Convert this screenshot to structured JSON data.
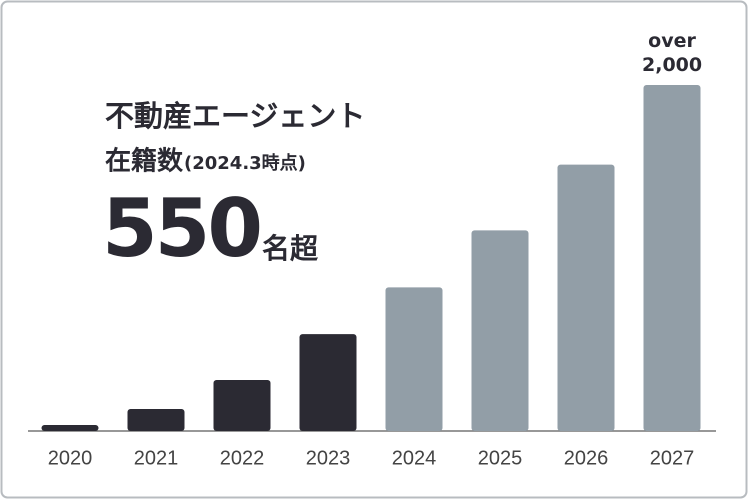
{
  "chart_data": {
    "type": "bar",
    "headline": {
      "line1": "不動産エージェント",
      "line2": "在籍数",
      "note": "(2024.3時点)",
      "count": "550",
      "count_unit": "名超"
    },
    "categories": [
      "2020",
      "2021",
      "2022",
      "2023",
      "2024",
      "2025",
      "2026",
      "2027"
    ],
    "values": [
      35,
      127,
      295,
      560,
      830,
      1160,
      1540,
      2000
    ],
    "value_labels": [
      null,
      null,
      null,
      null,
      null,
      null,
      null,
      "over 2,000"
    ],
    "colors": [
      "#2b2a33",
      "#2b2a33",
      "#2b2a33",
      "#2b2a33",
      "#929ea7",
      "#929ea7",
      "#929ea7",
      "#929ea7"
    ]
  }
}
